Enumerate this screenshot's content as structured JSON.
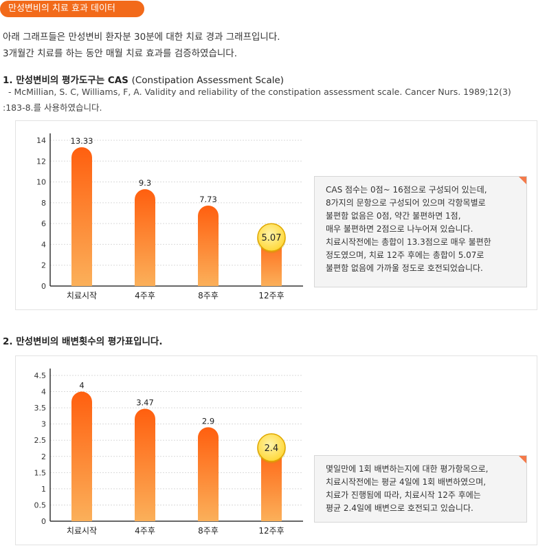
{
  "header": {
    "pill": "만성변비의 치료 효과 데이터"
  },
  "intro": [
    "아래 그래프들은 만성변비 환자분 30분에 대한 치료 경과 그래프입니다.",
    "3개월간 치료를 하는 동안 매월 치료 효과를 검증하였습니다."
  ],
  "section1": {
    "title": "1. 만성변비의 평가도구는 CAS",
    "title_en": "(Constipation Assessment Scale)",
    "ref_line1": "- McMillian, S. C, Williams, F, A. Validity and reliability of the constipation assessment scale. Cancer Nurs. 1989;12(3)",
    "ref_line2": ":183-8.를 사용하였습니다.",
    "note": [
      "CAS 점수는 0점~ 16점으로 구성되어 있는데,",
      "8가지의 문항으로 구성되어 있으며 각항목별로",
      "불편함 없음은 0점, 약간 불편하면 1점,",
      "매우 불편하면 2점으로 나누어져 있습니다.",
      "치료시작전에는 총합이 13.3점으로 매우 불편한",
      "정도였으며, 치료 12주 후에는 총합이 5.07로",
      "불편함 없음에 가까울 정도로 호전되었습니다."
    ]
  },
  "section2": {
    "title": "2. 만성변비의 배변횟수의 평가표입니다.",
    "note": [
      "몇일만에 1회 배변하는지에 대한 평가항목으로,",
      "치료시작전에는 평균 4일에 1회 배변하였으며,",
      "치료가 진행됨에 따라, 치료시작 12주 후에는",
      "평균 2.4일에 배변으로 호전되고 있습니다."
    ]
  },
  "colors": {
    "accent": "#f26a1a",
    "bar_top": "#ff5f0f",
    "bar_bottom": "#fbb05a",
    "highlight": "#ffd83a"
  },
  "chart_data": [
    {
      "type": "bar",
      "categories": [
        "치료시작",
        "4주후",
        "8주후",
        "12주후"
      ],
      "values": [
        13.33,
        9.3,
        7.73,
        5.07
      ],
      "value_labels": [
        "13.33",
        "9.3",
        "7.73",
        "5.07"
      ],
      "ylim": [
        0,
        14
      ],
      "yticks": [
        "0",
        "2",
        "4",
        "6",
        "8",
        "10",
        "12",
        "14"
      ],
      "grid": true,
      "highlighted_index": 3
    },
    {
      "type": "bar",
      "categories": [
        "치료시작",
        "4주후",
        "8주후",
        "12주후"
      ],
      "values": [
        4,
        3.47,
        2.9,
        2.4
      ],
      "value_labels": [
        "4",
        "3.47",
        "2.9",
        "2.4"
      ],
      "ylim": [
        0,
        4.5
      ],
      "yticks": [
        "0",
        "0.5",
        "1",
        "1.5",
        "2",
        "2.5",
        "3",
        "3.5",
        "4",
        "4.5"
      ],
      "grid": true,
      "highlighted_index": 3
    }
  ]
}
